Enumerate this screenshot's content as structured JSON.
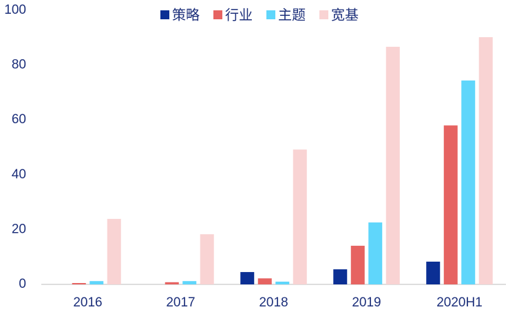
{
  "chart_data": {
    "type": "bar",
    "categories": [
      "2016",
      "2017",
      "2018",
      "2019",
      "2020H1"
    ],
    "series": [
      {
        "name": "策略",
        "color": "#0b2f94",
        "values": [
          0,
          0,
          4.5,
          5.5,
          8.3
        ]
      },
      {
        "name": "行业",
        "color": "#e66361",
        "values": [
          0.5,
          0.8,
          2.2,
          14.1,
          58
        ]
      },
      {
        "name": "主题",
        "color": "#5fd6fb",
        "values": [
          1.2,
          1.2,
          1,
          22.6,
          74.4
        ]
      },
      {
        "name": "宽基",
        "color": "#f9d3d3",
        "values": [
          23.9,
          18.3,
          49.2,
          86.7,
          90.2
        ]
      }
    ],
    "ylim": [
      0,
      100
    ],
    "yticks": [
      0,
      20,
      40,
      60,
      80,
      100
    ],
    "grid": false,
    "legend": "top"
  }
}
